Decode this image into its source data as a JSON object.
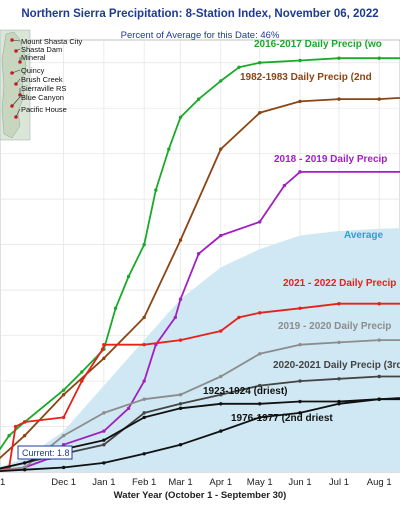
{
  "title": "Northern Sierra Precipitation: 8-Station Index, November 06, 2022",
  "subtitle": "Percent of Average for this Date: 46%",
  "xlabel": "Water Year (October 1 - September 30)",
  "current_label": "Current: 1.8",
  "stations": [
    "Mount Shasta City",
    "Shasta Dam",
    "Mineral",
    "Quincy",
    "Brush Creek",
    "Sierraville RS",
    "Blue Canyon",
    "Pacific House"
  ],
  "colors": {
    "title": "#1f3a93",
    "green": "#1aaa2a",
    "brown": "#8b4513",
    "purple": "#a020c0",
    "red": "#e8201a",
    "gray": "#8c8c8c",
    "dark_gray": "#444444",
    "black": "#111111",
    "average_fill": "#cfe8f3",
    "average_text": "#2ea0d0",
    "current": "#1a3aa0"
  },
  "chart_data": {
    "type": "line",
    "title": "Northern Sierra Precipitation: 8-Station Index, November 06, 2022",
    "subtitle": "Percent of Average for this Date: 46%",
    "xlabel": "Water Year (October 1 - September 30)",
    "ylabel": "",
    "x_ticks": [
      "Dec 1",
      "Jan 1",
      "Feb 1",
      "Mar 1",
      "Apr 1",
      "May 1",
      "Jun 1",
      "Jul 1",
      "Aug 1"
    ],
    "xlim": [
      "Oct 1",
      "Sep 30"
    ],
    "grid": true,
    "current_value": 1.8,
    "series": [
      {
        "name": "Average",
        "label": "Average",
        "color_key": "average_text",
        "x": [
          "Oct 1",
          "Nov 1",
          "Dec 1",
          "Jan 1",
          "Feb 1",
          "Mar 1",
          "Apr 1",
          "May 1",
          "Jun 1",
          "Jul 1",
          "Aug 1",
          "Sep 30"
        ],
        "y": [
          0,
          3,
          9,
          19,
          29,
          38,
          45,
          49,
          52,
          53,
          53.5,
          54
        ]
      },
      {
        "name": "2016-2017 Daily Precip",
        "label": "2016-2017 Daily Precip (wo",
        "color_key": "green",
        "x": [
          "Oct 1",
          "Oct 20",
          "Nov 1",
          "Dec 1",
          "Dec 15",
          "Jan 1",
          "Jan 10",
          "Jan 20",
          "Feb 1",
          "Feb 10",
          "Feb 20",
          "Mar 1",
          "Mar 15",
          "Apr 1",
          "Apr 15",
          "May 1",
          "Jun 1",
          "Jul 1",
          "Aug 1",
          "Sep 30"
        ],
        "y": [
          0,
          8,
          11,
          18,
          22,
          27,
          36,
          43,
          50,
          62,
          71,
          78,
          82,
          86,
          89,
          90,
          90.5,
          91,
          91,
          91
        ]
      },
      {
        "name": "1982-1983 Daily Precip",
        "label": "1982-1983 Daily Precip (2nd",
        "color_key": "brown",
        "x": [
          "Oct 1",
          "Nov 1",
          "Dec 1",
          "Jan 1",
          "Feb 1",
          "Mar 1",
          "Apr 1",
          "May 1",
          "Jun 1",
          "Jul 1",
          "Aug 1",
          "Sep 30"
        ],
        "y": [
          0,
          8,
          17,
          25,
          34,
          51,
          71,
          79,
          81.5,
          82,
          82,
          83
        ]
      },
      {
        "name": "2018 - 2019 Daily Precip",
        "label": "2018 - 2019 Daily Precip",
        "color_key": "purple",
        "x": [
          "Oct 1",
          "Nov 1",
          "Nov 20",
          "Dec 1",
          "Jan 1",
          "Jan 20",
          "Feb 1",
          "Feb 10",
          "Feb 25",
          "Mar 1",
          "Mar 15",
          "Apr 1",
          "May 1",
          "May 20",
          "Jun 1",
          "Sep 30"
        ],
        "y": [
          0,
          1,
          3,
          6,
          9,
          14,
          20,
          28,
          34,
          38,
          48,
          52,
          55,
          63,
          66,
          66
        ]
      },
      {
        "name": "2021 - 2022 Daily Precip",
        "label": "2021 - 2022 Daily Precip",
        "color_key": "red",
        "x": [
          "Oct 1",
          "Oct 20",
          "Oct 25",
          "Nov 1",
          "Dec 1",
          "Dec 15",
          "Dec 31",
          "Jan 1",
          "Feb 1",
          "Mar 1",
          "Apr 1",
          "Apr 15",
          "May 1",
          "Jun 1",
          "Jul 1",
          "Aug 1",
          "Sep 30"
        ],
        "y": [
          0,
          1,
          10,
          11,
          12,
          20,
          27,
          28,
          28,
          29,
          31,
          34,
          35,
          36,
          37,
          37,
          37
        ]
      },
      {
        "name": "2019 - 2020 Daily Precip",
        "label": "2019 - 2020 Daily Precip",
        "color_key": "gray",
        "x": [
          "Oct 1",
          "Nov 1",
          "Dec 1",
          "Jan 1",
          "Feb 1",
          "Mar 1",
          "Apr 1",
          "May 1",
          "Jun 1",
          "Jul 1",
          "Aug 1",
          "Sep 30"
        ],
        "y": [
          0,
          1,
          8,
          13,
          16,
          17,
          21,
          26,
          28,
          28.5,
          29,
          29
        ]
      },
      {
        "name": "2020-2021 Daily Precip",
        "label": "2020-2021 Daily Precip (3rd",
        "color_key": "dark_gray",
        "x": [
          "Oct 1",
          "Nov 1",
          "Dec 1",
          "Jan 1",
          "Feb 1",
          "Mar 1",
          "Apr 1",
          "May 1",
          "Jun 1",
          "Jul 1",
          "Aug 1",
          "Sep 30"
        ],
        "y": [
          0,
          2,
          4,
          6,
          13,
          15,
          17,
          19,
          20,
          20.5,
          21,
          21
        ]
      },
      {
        "name": "1923-1924 (driest)",
        "label": "1923-1924 (driest)",
        "color_key": "black",
        "x": [
          "Oct 1",
          "Nov 1",
          "Dec 1",
          "Jan 1",
          "Feb 1",
          "Mar 1",
          "Apr 1",
          "May 1",
          "Jun 1",
          "Jul 1",
          "Aug 1",
          "Sep 30"
        ],
        "y": [
          0,
          2,
          5,
          7,
          12,
          14,
          15,
          15,
          15.5,
          15.5,
          16,
          16
        ]
      },
      {
        "name": "1976-1977 (2nd driest)",
        "label": "1976-1977 (2nd driest",
        "color_key": "black",
        "x": [
          "Oct 1",
          "Nov 1",
          "Dec 1",
          "Jan 1",
          "Feb 1",
          "Mar 1",
          "Apr 1",
          "May 1",
          "Jun 1",
          "Jul 1",
          "Aug 1",
          "Sep 30"
        ],
        "y": [
          0,
          0.5,
          1,
          2,
          4,
          6,
          9,
          12,
          13,
          15,
          16,
          17
        ]
      }
    ]
  }
}
